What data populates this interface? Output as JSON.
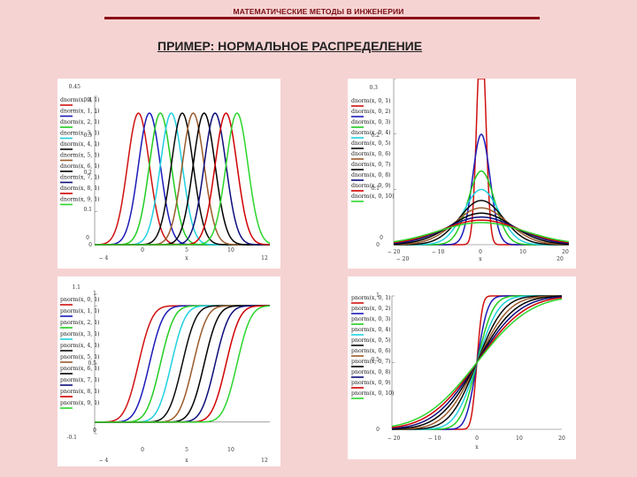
{
  "header": {
    "title": "МАТЕМАТИЧЕСКИЕ МЕТОДЫ В ИНЖЕНЕРИИ",
    "rule_color": "#8b0d16"
  },
  "slide": {
    "title": "ПРИМЕР: НОРМАЛЬНОЕ РАСПРЕДЕЛЕНИЕ"
  },
  "palette": [
    "#d01010",
    "#1a1ab8",
    "#22cc22",
    "#20d0e0",
    "#0a0a0a",
    "#9a5a2a",
    "#000000",
    "#0c0c7a",
    "#d00000",
    "#2cd52c"
  ],
  "chart_data": [
    {
      "type": "line",
      "function": "pdf",
      "xlabel": "x",
      "ylabel": "0",
      "xlim": [
        -4,
        12
      ],
      "ylim": [
        0,
        0.45
      ],
      "x_ticks": [
        "-4",
        "0",
        "5",
        "10",
        "12"
      ],
      "y_ticks": [
        "0",
        "0.1",
        "0.2",
        "0.3",
        "0.4",
        "0.45"
      ],
      "series": [
        {
          "name": "dnorm(x, 0, 1)",
          "mean": 0,
          "sd": 1
        },
        {
          "name": "dnorm(x, 1, 1)",
          "mean": 1,
          "sd": 1
        },
        {
          "name": "dnorm(x, 2, 1)",
          "mean": 2,
          "sd": 1
        },
        {
          "name": "dnorm(x, 3, 1)",
          "mean": 3,
          "sd": 1
        },
        {
          "name": "dnorm(x, 4, 1)",
          "mean": 4,
          "sd": 1
        },
        {
          "name": "dnorm(x, 5, 1)",
          "mean": 5,
          "sd": 1
        },
        {
          "name": "dnorm(x, 6, 1)",
          "mean": 6,
          "sd": 1
        },
        {
          "name": "dnorm(x, 7, 1)",
          "mean": 7,
          "sd": 1
        },
        {
          "name": "dnorm(x, 8, 1)",
          "mean": 8,
          "sd": 1
        },
        {
          "name": "dnorm(x, 9, 1)",
          "mean": 9,
          "sd": 1
        }
      ]
    },
    {
      "type": "line",
      "function": "pdf",
      "xlabel": "x",
      "ylabel": "0",
      "xlim": [
        -20,
        20
      ],
      "ylim": [
        0,
        0.3
      ],
      "x_ticks": [
        "-20",
        "-10",
        "0",
        "10",
        "20"
      ],
      "x_ticks_bottom": [
        "-20",
        "20"
      ],
      "y_ticks": [
        "0",
        "0.1",
        "0.2",
        "0.3"
      ],
      "series": [
        {
          "name": "dnorm(x, 0, 1)",
          "mean": 0,
          "sd": 1
        },
        {
          "name": "dnorm(x, 0, 2)",
          "mean": 0,
          "sd": 2
        },
        {
          "name": "dnorm(x, 0, 3)",
          "mean": 0,
          "sd": 3
        },
        {
          "name": "dnorm(x, 0, 4)",
          "mean": 0,
          "sd": 4
        },
        {
          "name": "dnorm(x, 0, 5)",
          "mean": 0,
          "sd": 5
        },
        {
          "name": "dnorm(x, 0, 6)",
          "mean": 0,
          "sd": 6
        },
        {
          "name": "dnorm(x, 0, 7)",
          "mean": 0,
          "sd": 7
        },
        {
          "name": "dnorm(x, 0, 8)",
          "mean": 0,
          "sd": 8
        },
        {
          "name": "dnorm(x, 0, 9)",
          "mean": 0,
          "sd": 9
        },
        {
          "name": "dnorm(x, 0, 10)",
          "mean": 0,
          "sd": 10
        }
      ]
    },
    {
      "type": "line",
      "function": "cdf",
      "xlabel": "x",
      "xlim": [
        -4,
        12
      ],
      "ylim": [
        -0.1,
        1.1
      ],
      "x_ticks": [
        "0",
        "5",
        "10"
      ],
      "x_ticks_bottom": [
        "-4",
        "12"
      ],
      "y_ticks": [
        "-0.1",
        "0",
        "0.5",
        "1",
        "1.1"
      ],
      "series": [
        {
          "name": "pnorm(x, 0, 1)",
          "mean": 0,
          "sd": 1
        },
        {
          "name": "pnorm(x, 1, 1)",
          "mean": 1,
          "sd": 1
        },
        {
          "name": "pnorm(x, 2, 1)",
          "mean": 2,
          "sd": 1
        },
        {
          "name": "pnorm(x, 3, 1)",
          "mean": 3,
          "sd": 1
        },
        {
          "name": "pnorm(x, 4, 1)",
          "mean": 4,
          "sd": 1
        },
        {
          "name": "pnorm(x, 5, 1)",
          "mean": 5,
          "sd": 1
        },
        {
          "name": "pnorm(x, 6, 1)",
          "mean": 6,
          "sd": 1
        },
        {
          "name": "pnorm(x, 7, 1)",
          "mean": 7,
          "sd": 1
        },
        {
          "name": "pnorm(x, 8, 1)",
          "mean": 8,
          "sd": 1
        },
        {
          "name": "pnorm(x, 9, 1)",
          "mean": 9,
          "sd": 1
        }
      ]
    },
    {
      "type": "line",
      "function": "cdf",
      "xlabel": "x",
      "xlim": [
        -20,
        20
      ],
      "ylim": [
        0,
        1
      ],
      "x_ticks": [
        "-20",
        "-10",
        "0",
        "10",
        "20"
      ],
      "y_ticks": [
        "0",
        "0.5",
        "1"
      ],
      "series": [
        {
          "name": "pnorm(x, 0, 1)",
          "mean": 0,
          "sd": 1
        },
        {
          "name": "pnorm(x, 0, 2)",
          "mean": 0,
          "sd": 2
        },
        {
          "name": "pnorm(x, 0, 3)",
          "mean": 0,
          "sd": 3
        },
        {
          "name": "pnorm(x, 0, 4)",
          "mean": 0,
          "sd": 4
        },
        {
          "name": "pnorm(x, 0, 5)",
          "mean": 0,
          "sd": 5
        },
        {
          "name": "pnorm(x, 0, 6)",
          "mean": 0,
          "sd": 6
        },
        {
          "name": "pnorm(x, 0, 7)",
          "mean": 0,
          "sd": 7
        },
        {
          "name": "pnorm(x, 0, 8)",
          "mean": 0,
          "sd": 8
        },
        {
          "name": "pnorm(x, 0, 9)",
          "mean": 0,
          "sd": 9
        },
        {
          "name": "pnorm(x, 0, 10)",
          "mean": 0,
          "sd": 10
        }
      ]
    }
  ]
}
